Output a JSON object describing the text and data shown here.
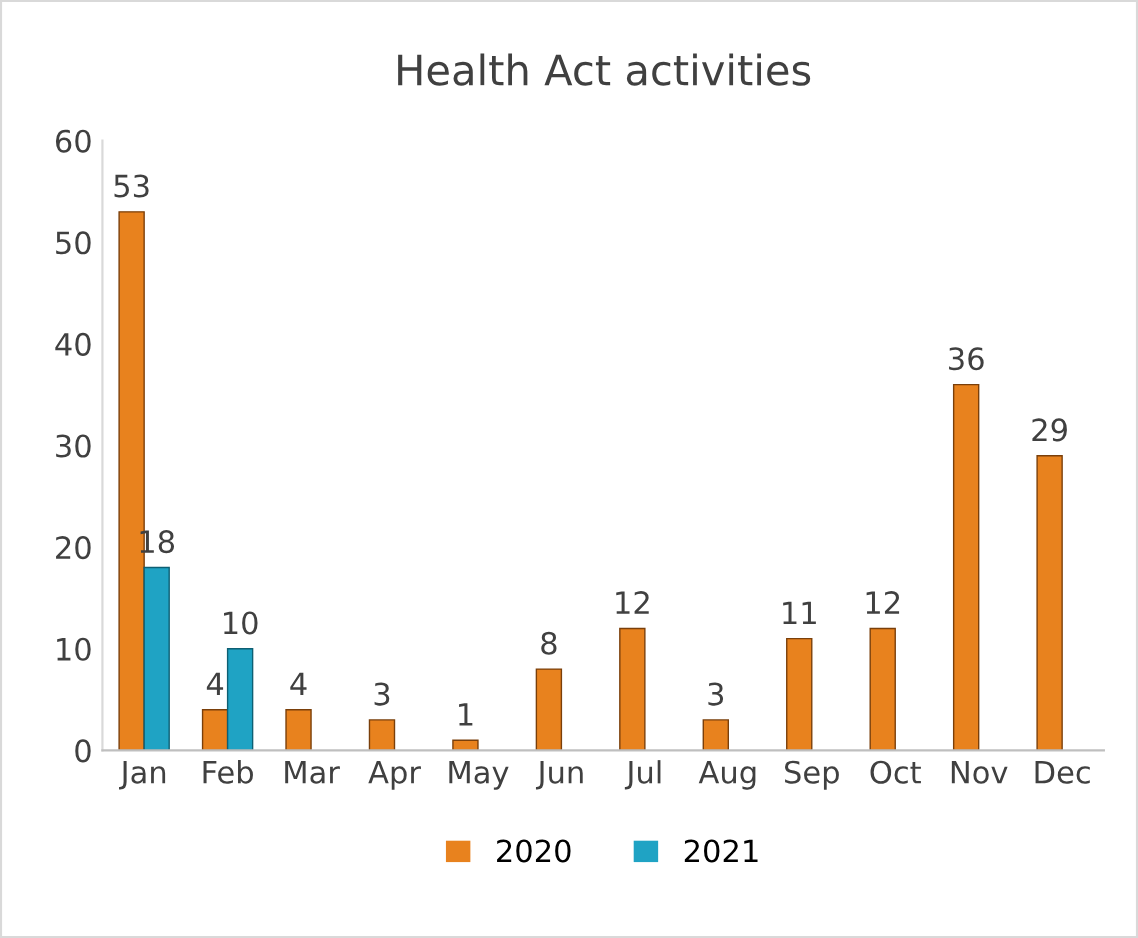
{
  "chart_data": {
    "type": "bar",
    "title": "Health Act activities",
    "categories": [
      "Jan",
      "Feb",
      "Mar",
      "Apr",
      "May",
      "Jun",
      "Jul",
      "Aug",
      "Sep",
      "Oct",
      "Nov",
      "Dec"
    ],
    "series": [
      {
        "name": "2020",
        "color": "#e8821e",
        "values": [
          53,
          4,
          4,
          3,
          1,
          8,
          12,
          3,
          11,
          12,
          36,
          29
        ]
      },
      {
        "name": "2021",
        "color": "#1fa3c4",
        "values": [
          18,
          10,
          null,
          null,
          null,
          null,
          null,
          null,
          null,
          null,
          null,
          null
        ]
      }
    ],
    "ylim": [
      0,
      60
    ],
    "yticks": [
      0,
      10,
      20,
      30,
      40,
      50,
      60
    ],
    "grid": false,
    "legend": "bottom",
    "data_labels": true
  }
}
